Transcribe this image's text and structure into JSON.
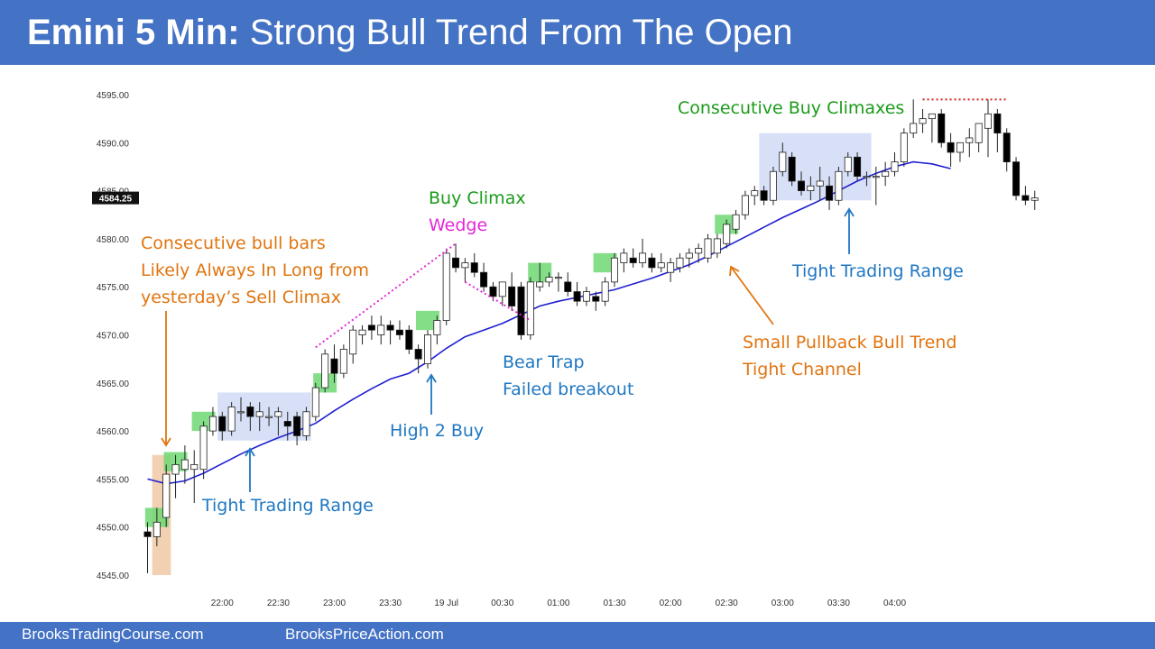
{
  "header": {
    "title_bold": "Emini 5 Min:",
    "title_rest": "Strong Bull Trend From The Open"
  },
  "footer": {
    "left": "BrooksTradingCourse.com",
    "right": "BrooksPriceAction.com"
  },
  "colors": {
    "header_bg": "#4472c4",
    "ema": "#1f1fd1",
    "bull_bar": "#ffffff",
    "bear_bar": "#000000",
    "green_box": "#6fd873",
    "blue_box": "#c9d6f3",
    "orange_box": "#f0c9a4",
    "orange_text": "#e07510",
    "blue_text": "#1f77c2",
    "green_text": "#1b9b1b",
    "magenta": "#e526d8",
    "red_dotted": "#d21f1f"
  },
  "chart_data": {
    "type": "candlestick",
    "title": "Emini 5 Min: Strong Bull Trend From The Open",
    "ylim": [
      4545,
      4597
    ],
    "y_ticks": [
      "4545.00",
      "4550.00",
      "4555.00",
      "4560.00",
      "4565.00",
      "4570.00",
      "4575.00",
      "4580.00",
      "4585.00",
      "4590.00",
      "4595.00"
    ],
    "y_tick_values": [
      4545,
      4550,
      4555,
      4560,
      4565,
      4570,
      4575,
      4580,
      4585,
      4590,
      4595
    ],
    "x_ticks": [
      "22:00",
      "22:30",
      "23:00",
      "23:30",
      "19 Jul",
      "00:30",
      "01:00",
      "01:30",
      "02:00",
      "02:30",
      "03:00",
      "03:30",
      "04:00"
    ],
    "x_tick_bars": [
      8,
      14,
      20,
      26,
      32,
      38,
      44,
      50,
      56,
      62,
      68,
      74,
      80
    ],
    "last_price": "4584.25",
    "candles": [
      [
        4549.5,
        4550.5,
        4545.2,
        4549.0
      ],
      [
        4549.0,
        4552.0,
        4548.0,
        4550.5
      ],
      [
        4551.0,
        4556.5,
        4550.0,
        4555.5
      ],
      [
        4555.5,
        4557.5,
        4553.0,
        4556.5
      ],
      [
        4556.0,
        4558.5,
        4554.5,
        4557.0
      ],
      [
        4556.0,
        4558.0,
        4552.5,
        4556.5
      ],
      [
        4556.0,
        4561.0,
        4555.0,
        4560.5
      ],
      [
        4560.0,
        4562.5,
        4559.5,
        4561.5
      ],
      [
        4561.5,
        4562.0,
        4559.0,
        4560.0
      ],
      [
        4560.0,
        4563.0,
        4559.5,
        4562.5
      ],
      [
        4562.0,
        4563.5,
        4561.0,
        4562.0
      ],
      [
        4562.5,
        4563.0,
        4560.0,
        4561.5
      ],
      [
        4561.5,
        4563.0,
        4560.0,
        4562.0
      ],
      [
        4561.5,
        4562.5,
        4560.5,
        4561.5
      ],
      [
        4561.5,
        4562.5,
        4559.5,
        4562.0
      ],
      [
        4561.0,
        4562.0,
        4559.0,
        4560.5
      ],
      [
        4561.5,
        4562.0,
        4558.5,
        4559.5
      ],
      [
        4559.5,
        4562.5,
        4559.0,
        4562.0
      ],
      [
        4561.5,
        4565.0,
        4561.0,
        4564.5
      ],
      [
        4564.5,
        4568.5,
        4564.0,
        4568.0
      ],
      [
        4567.5,
        4569.0,
        4565.0,
        4566.0
      ],
      [
        4566.0,
        4569.0,
        4565.5,
        4568.5
      ],
      [
        4568.0,
        4571.0,
        4567.0,
        4570.5
      ],
      [
        4570.0,
        4571.0,
        4569.0,
        4570.5
      ],
      [
        4571.0,
        4572.0,
        4569.5,
        4570.5
      ],
      [
        4570.0,
        4572.0,
        4569.0,
        4571.0
      ],
      [
        4571.0,
        4571.5,
        4569.0,
        4570.5
      ],
      [
        4570.5,
        4571.5,
        4569.5,
        4570.0
      ],
      [
        4570.5,
        4571.0,
        4568.0,
        4568.5
      ],
      [
        4568.5,
        4569.0,
        4566.0,
        4567.5
      ],
      [
        4567.0,
        4570.5,
        4566.5,
        4570.0
      ],
      [
        4570.0,
        4572.0,
        4569.0,
        4571.5
      ],
      [
        4571.5,
        4579.0,
        4571.0,
        4578.5
      ],
      [
        4578.0,
        4579.5,
        4576.5,
        4577.0
      ],
      [
        4577.0,
        4578.0,
        4575.5,
        4577.5
      ],
      [
        4577.5,
        4578.5,
        4576.0,
        4576.5
      ],
      [
        4576.5,
        4577.5,
        4574.5,
        4575.0
      ],
      [
        4575.0,
        4575.5,
        4573.5,
        4574.0
      ],
      [
        4574.0,
        4575.5,
        4573.0,
        4575.5
      ],
      [
        4575.0,
        4576.5,
        4572.5,
        4573.0
      ],
      [
        4575.0,
        4575.5,
        4569.5,
        4570.0
      ],
      [
        4570.0,
        4576.0,
        4569.5,
        4575.5
      ],
      [
        4575.0,
        4577.5,
        4574.5,
        4575.5
      ],
      [
        4575.5,
        4576.5,
        4575.0,
        4576.0
      ],
      [
        4576.0,
        4576.5,
        4574.5,
        4576.0
      ],
      [
        4575.5,
        4576.5,
        4574.0,
        4574.5
      ],
      [
        4574.5,
        4575.5,
        4573.0,
        4573.5
      ],
      [
        4573.5,
        4575.0,
        4573.0,
        4574.5
      ],
      [
        4574.0,
        4574.5,
        4572.5,
        4573.5
      ],
      [
        4573.5,
        4576.0,
        4573.0,
        4575.5
      ],
      [
        4575.5,
        4578.5,
        4575.0,
        4578.0
      ],
      [
        4577.5,
        4579.0,
        4576.5,
        4578.5
      ],
      [
        4578.0,
        4579.0,
        4577.0,
        4577.5
      ],
      [
        4577.5,
        4580.0,
        4577.0,
        4578.5
      ],
      [
        4578.0,
        4578.5,
        4576.5,
        4577.0
      ],
      [
        4577.0,
        4578.5,
        4576.5,
        4577.5
      ],
      [
        4576.5,
        4578.0,
        4575.5,
        4577.5
      ],
      [
        4577.0,
        4578.5,
        4576.5,
        4578.0
      ],
      [
        4578.0,
        4579.0,
        4577.0,
        4578.5
      ],
      [
        4578.5,
        4579.5,
        4577.5,
        4579.0
      ],
      [
        4578.0,
        4580.5,
        4577.5,
        4580.0
      ],
      [
        4578.5,
        4580.5,
        4578.0,
        4580.0
      ],
      [
        4579.5,
        4582.0,
        4579.0,
        4581.5
      ],
      [
        4581.0,
        4583.0,
        4580.5,
        4582.5
      ],
      [
        4582.5,
        4585.0,
        4582.0,
        4584.5
      ],
      [
        4584.5,
        4585.5,
        4583.5,
        4585.0
      ],
      [
        4585.0,
        4585.5,
        4583.5,
        4584.0
      ],
      [
        4584.0,
        4587.5,
        4583.5,
        4587.0
      ],
      [
        4587.0,
        4590.0,
        4586.5,
        4589.0
      ],
      [
        4588.5,
        4589.0,
        4585.5,
        4586.0
      ],
      [
        4586.0,
        4587.0,
        4584.5,
        4585.0
      ],
      [
        4585.0,
        4586.5,
        4584.0,
        4585.5
      ],
      [
        4585.5,
        4587.5,
        4584.0,
        4586.0
      ],
      [
        4585.5,
        4586.5,
        4583.0,
        4584.0
      ],
      [
        4584.0,
        4587.5,
        4583.5,
        4587.0
      ],
      [
        4587.0,
        4589.0,
        4586.5,
        4588.5
      ],
      [
        4588.5,
        4589.0,
        4586.0,
        4586.5
      ],
      [
        4586.5,
        4587.0,
        4585.5,
        4586.5
      ],
      [
        4586.5,
        4587.5,
        4583.5,
        4586.5
      ],
      [
        4586.5,
        4588.0,
        4585.5,
        4587.0
      ],
      [
        4587.0,
        4589.0,
        4586.5,
        4588.0
      ],
      [
        4588.0,
        4591.5,
        4587.5,
        4591.0
      ],
      [
        4591.0,
        4594.5,
        4590.5,
        4592.0
      ],
      [
        4592.0,
        4593.5,
        4591.0,
        4592.5
      ],
      [
        4592.5,
        4593.0,
        4590.0,
        4593.0
      ],
      [
        4593.0,
        4593.5,
        4589.5,
        4590.0
      ],
      [
        4590.0,
        4591.0,
        4587.5,
        4589.0
      ],
      [
        4589.0,
        4590.0,
        4588.0,
        4590.0
      ],
      [
        4590.0,
        4591.5,
        4588.5,
        4590.5
      ],
      [
        4590.0,
        4592.0,
        4589.0,
        4592.0
      ],
      [
        4591.5,
        4594.5,
        4588.5,
        4593.0
      ],
      [
        4593.0,
        4593.5,
        4589.0,
        4591.0
      ],
      [
        4591.0,
        4591.5,
        4587.0,
        4588.0
      ],
      [
        4588.0,
        4588.5,
        4584.0,
        4584.5
      ],
      [
        4584.5,
        4585.5,
        4583.5,
        4584.0
      ],
      [
        4584.0,
        4585.0,
        4583.0,
        4584.25
      ]
    ],
    "ema": [
      [
        0,
        4555.0
      ],
      [
        2,
        4554.5
      ],
      [
        4,
        4554.8
      ],
      [
        6,
        4555.6
      ],
      [
        8,
        4556.6
      ],
      [
        10,
        4557.6
      ],
      [
        12,
        4558.5
      ],
      [
        14,
        4559.3
      ],
      [
        16,
        4560.0
      ],
      [
        18,
        4560.8
      ],
      [
        20,
        4562.1
      ],
      [
        22,
        4563.3
      ],
      [
        24,
        4564.4
      ],
      [
        26,
        4565.4
      ],
      [
        28,
        4566.0
      ],
      [
        30,
        4567.2
      ],
      [
        32,
        4568.6
      ],
      [
        34,
        4569.8
      ],
      [
        36,
        4570.5
      ],
      [
        38,
        4571.2
      ],
      [
        40,
        4572.1
      ],
      [
        42,
        4573.0
      ],
      [
        44,
        4573.5
      ],
      [
        46,
        4573.9
      ],
      [
        48,
        4574.3
      ],
      [
        50,
        4574.7
      ],
      [
        52,
        4575.3
      ],
      [
        54,
        4575.9
      ],
      [
        56,
        4576.6
      ],
      [
        58,
        4577.3
      ],
      [
        60,
        4578.2
      ],
      [
        62,
        4579.2
      ],
      [
        64,
        4580.2
      ],
      [
        66,
        4581.2
      ],
      [
        68,
        4582.2
      ],
      [
        70,
        4583.1
      ],
      [
        72,
        4584.0
      ],
      [
        74,
        4585.0
      ],
      [
        76,
        4586.0
      ],
      [
        78,
        4586.8
      ],
      [
        80,
        4587.5
      ],
      [
        82,
        4588.0
      ],
      [
        84,
        4587.8
      ],
      [
        86,
        4587.3
      ]
    ],
    "green_boxes": [
      {
        "bar": 1,
        "lo": 4550.0,
        "hi": 4552.0
      },
      {
        "bar": 3,
        "lo": 4555.8,
        "hi": 4557.8
      },
      {
        "bar": 6,
        "lo": 4560.0,
        "hi": 4562.0
      },
      {
        "bar": 19,
        "lo": 4564.0,
        "hi": 4566.0
      },
      {
        "bar": 30,
        "lo": 4570.5,
        "hi": 4572.5
      },
      {
        "bar": 42,
        "lo": 4575.5,
        "hi": 4577.5
      },
      {
        "bar": 49,
        "lo": 4576.5,
        "hi": 4578.5
      },
      {
        "bar": 62,
        "lo": 4580.5,
        "hi": 4582.5
      }
    ],
    "blue_boxes": [
      {
        "bar0": 7.5,
        "bar1": 17.5,
        "lo": 4559.0,
        "hi": 4564.0
      },
      {
        "bar0": 65.5,
        "bar1": 77.5,
        "lo": 4584.0,
        "hi": 4591.0
      }
    ],
    "orange_box": {
      "bar0": 0.5,
      "bar1": 2.5,
      "lo": 4545.0,
      "hi": 4557.5
    },
    "annotations": {
      "consec_bull": [
        "Consecutive bull bars",
        "Likely Always In Long from",
        "yesterday’s Sell Climax"
      ],
      "ttr1": "Tight Trading Range",
      "high2": "High 2 Buy",
      "buy_climax": "Buy Climax",
      "wedge": "Wedge",
      "bear_trap": [
        "Bear Trap",
        "Failed breakout"
      ],
      "small_pb": [
        "Small Pullback Bull Trend",
        "Tight Channel"
      ],
      "ttr2": "Tight Trading Range",
      "consec_buy": "Consecutive Buy Climaxes"
    }
  }
}
